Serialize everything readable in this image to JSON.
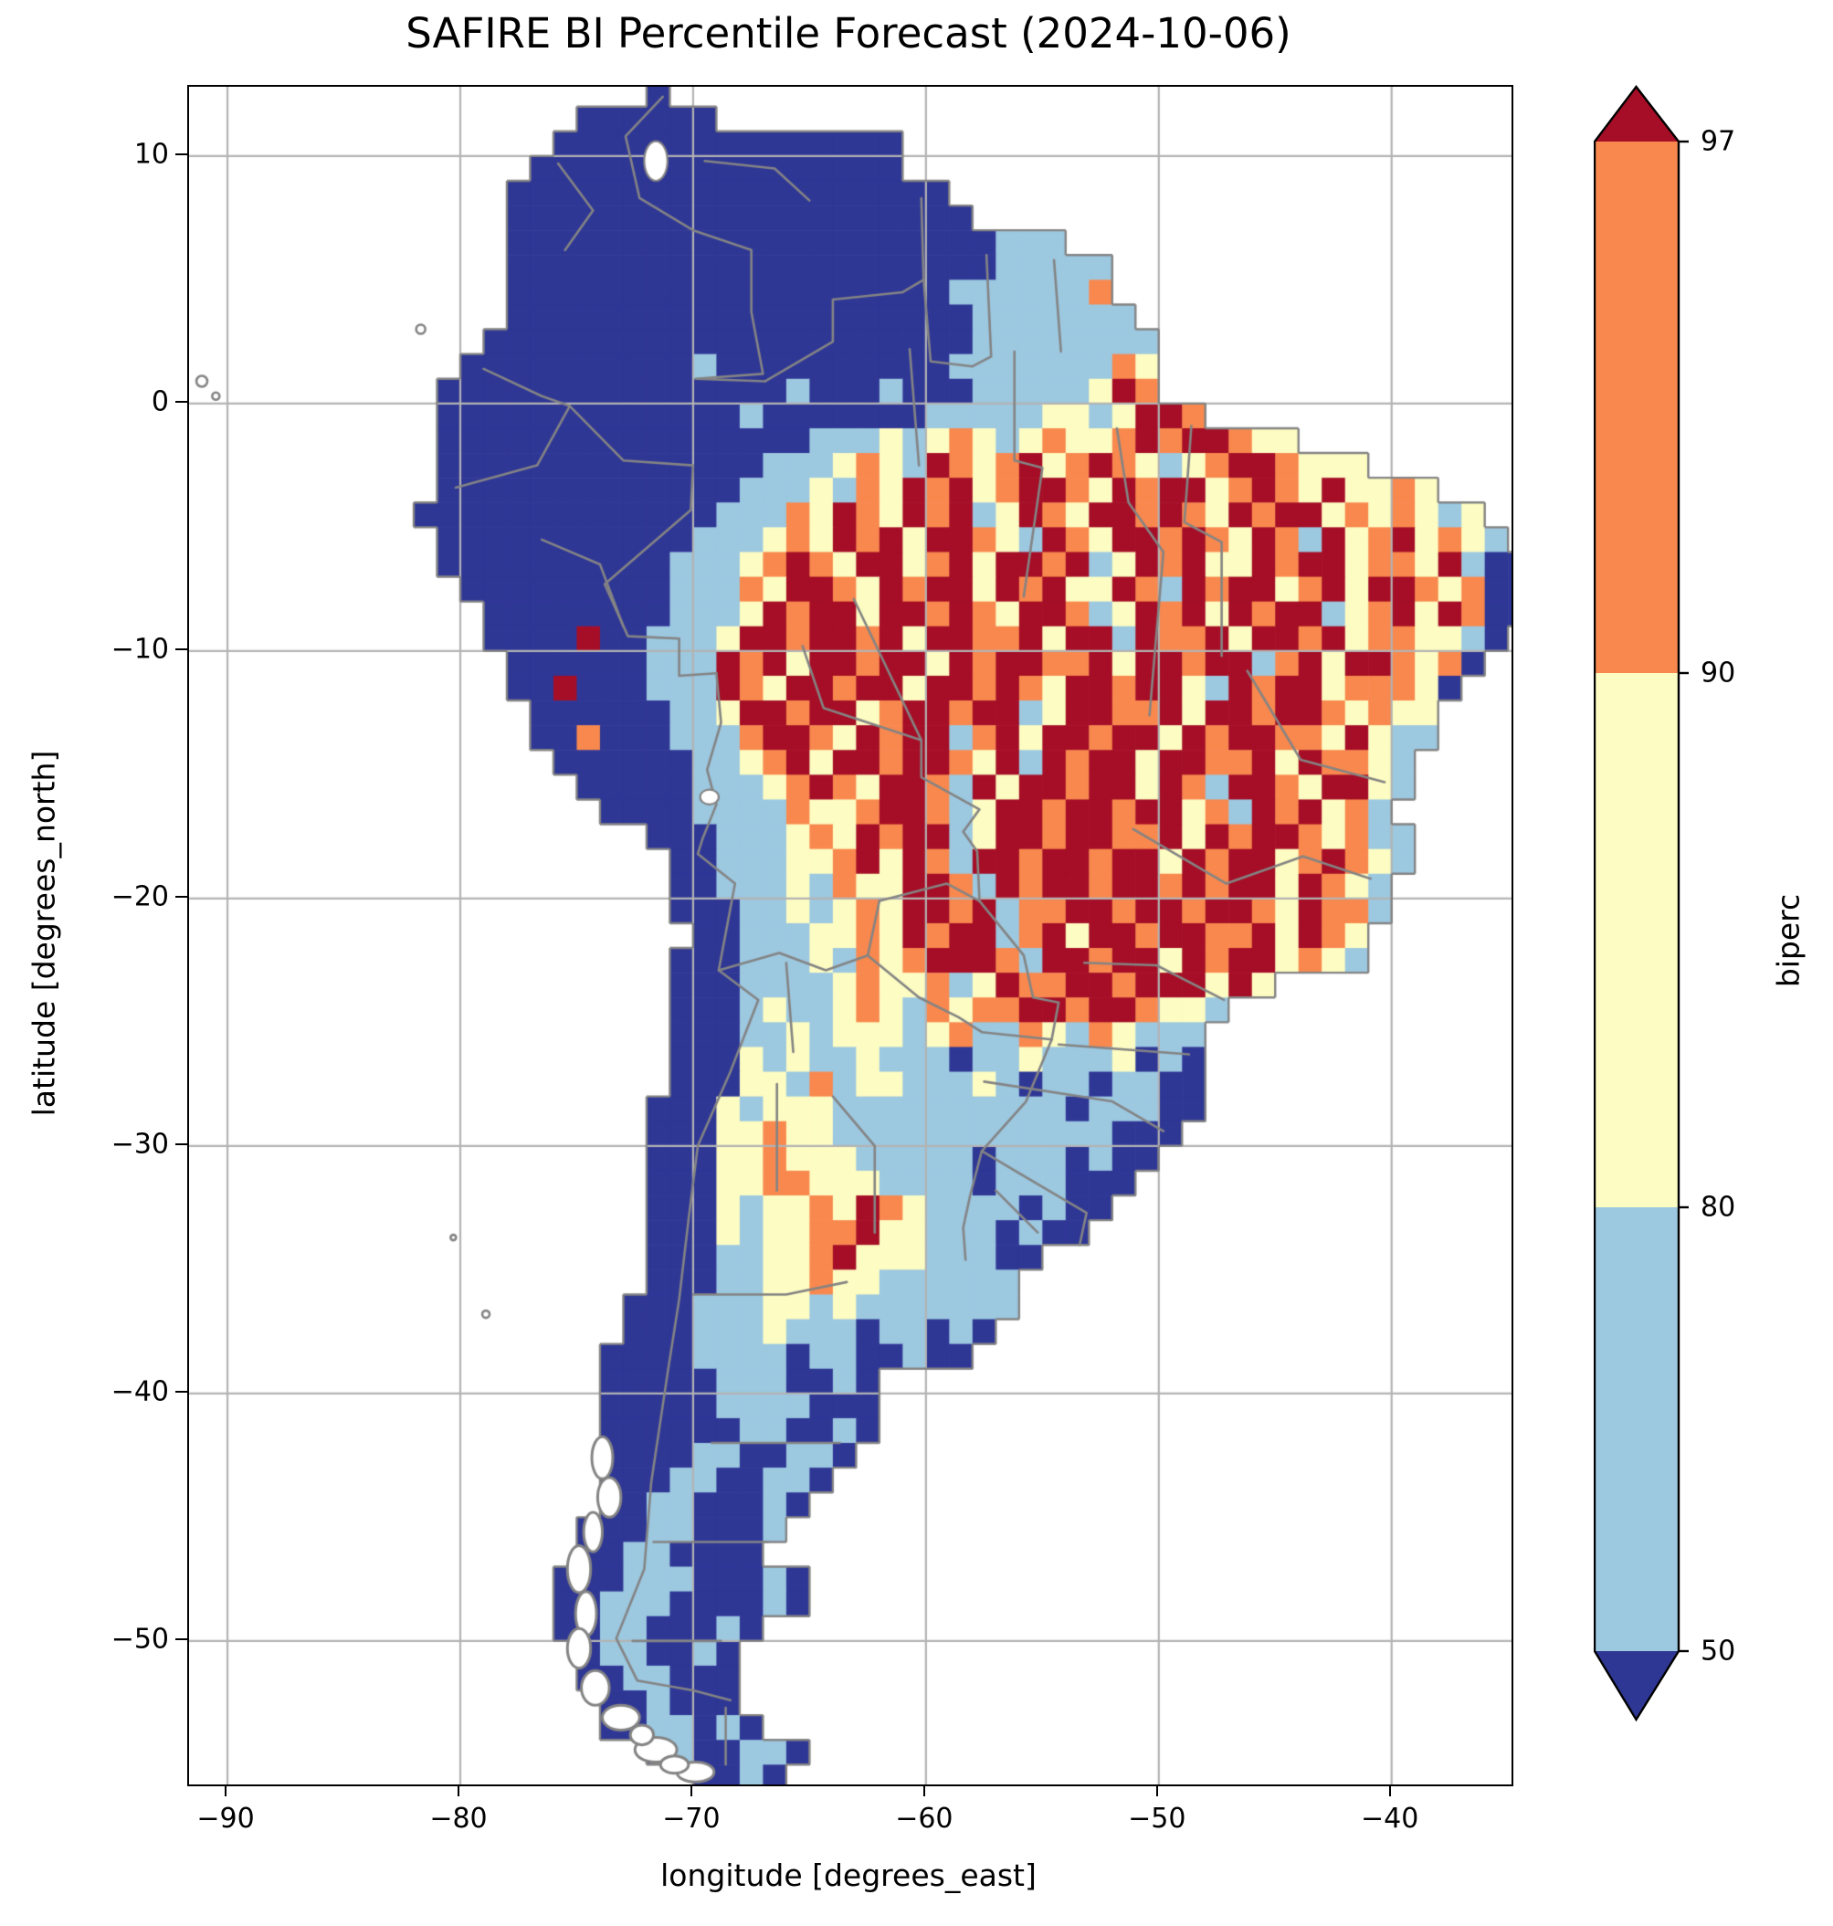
{
  "title": "SAFIRE BI Percentile Forecast (2024-10-06)",
  "axes": {
    "xlabel": "longitude [degrees_east]",
    "ylabel": "latitude [degrees_north]",
    "xlim": [
      -91.65,
      -34.85
    ],
    "ylim": [
      -55.8,
      12.8
    ],
    "x_ticks": [
      {
        "value": -90,
        "label": "−90"
      },
      {
        "value": -80,
        "label": "−80"
      },
      {
        "value": -70,
        "label": "−70"
      },
      {
        "value": -60,
        "label": "−60"
      },
      {
        "value": -50,
        "label": "−50"
      },
      {
        "value": -40,
        "label": "−40"
      }
    ],
    "y_ticks": [
      {
        "value": 10,
        "label": "10"
      },
      {
        "value": 0,
        "label": "0"
      },
      {
        "value": -10,
        "label": "−10"
      },
      {
        "value": -20,
        "label": "−20"
      },
      {
        "value": -30,
        "label": "−30"
      },
      {
        "value": -40,
        "label": "−40"
      },
      {
        "value": -50,
        "label": "−50"
      }
    ]
  },
  "colorbar": {
    "label": "biperc",
    "levels": [
      50,
      80,
      90,
      97
    ],
    "tick_labels": [
      "97",
      "90",
      "80",
      "50"
    ],
    "extend": "both"
  },
  "colors": {
    "under_50": "#2f3795",
    "bin_50_80": "#9cc8e0",
    "bin_80_90": "#fdfcc2",
    "bin_90_97": "#f8884e",
    "over_97": "#a50e26",
    "border_gray": "#848484",
    "grid_gray": "#b3b3b3",
    "spine_black": "#000000",
    "background": "#ffffff"
  },
  "chart_data": {
    "type": "heatmap",
    "title": "SAFIRE BI Percentile Forecast (2024-10-06)",
    "xlabel": "longitude [degrees_east]",
    "ylabel": "latitude [degrees_north]",
    "variable": "biperc",
    "levels": [
      50,
      80,
      90,
      97
    ],
    "bins": [
      "<50",
      "50-80",
      "80-90",
      "90-97",
      ">97"
    ],
    "bin_colors": [
      "#2f3795",
      "#9cc8e0",
      "#fdfcc2",
      "#f8884e",
      "#a50e26"
    ],
    "legend_position": "right",
    "grid_on": true,
    "code_meaning": {
      ".": "no data / ocean",
      "N": "<50",
      "b": "50-80",
      "y": "80-90",
      "o": "90-97",
      "r": ">97"
    },
    "grid": {
      "lon_min": -92,
      "lat_max": 13,
      "cell_deg": 1,
      "cols": 58,
      "rows": 69
    },
    "raster_rows": [
      "....................N.....................................",
      ".................NNNNNN...................................",
      "................NNNNNNNNNNNNNNN...........................",
      "...............NNNNNNNNNNNNNNNN...........................",
      "..............NNNNNNNNNNNNNNNNNNN.........................",
      "..............NNNNNNNNNNNNNNNNNNNN........................",
      "..............NNNNNNNNNNNNNNNNNNNNNbbb....................",
      "..............NNNNNNNNNNNNNNNNNNNNNbbbbb..................",
      "..............NNNNNNNNNNNNNNNNNNNbbbbbbo..................",
      "..............NNNNNNNNNNNNNNNNNNNNbbbbbbb.................",
      ".............NNNNNNNNNNNNNNNNNNNNNbbbbbbbb................",
      "............NNNNNNNNNNbNNNNNNNNNNbbbbbbboy................",
      "...........NNNNNNNNNNNNNNNbNNNbNNNbbbbbyro................",
      "...........NNNNNNNNNNNNNbNNNNNNNbbbbbyybyrro..............",
      "...........NNNNNNNNNNNNNNNNbbbybyoybyoyyororroyy..........",
      "...........NNNNNNNNNNNNNNbbbyoybroyoryoroybyorroyyy.......",
      "...........NNNNNNNNNNNNNbbbyboyroryorroyrorryoroyryyoy....",
      "..........NNNNNNNNNNNNNbbboyroyrorbyroyrroroyrorryoyoyby..",
      "...........NNNNNNNNNNNbbbyoyroryrroybroyrroroyrobryoryoyb.",
      "...........NNNNNNNNNNbbbyoroyrryoryrrorbyroryyrorryooyrbNN",
      "............NNNNNNNNNbbboyrroyrorryroryyrobrorryoryrroyoNN",
      ".............NNNNNNNNbbbyrorryrroroyrrobyroryrorrbyoryroNN",
      ".............NNNNrNNbbbyrrorroryrrooryrrbrooryrroryooyybN.",
      "..............NNNNNNbbbroryrrorryrorrooryrrorrboryrroyoN..",
      "..............NNrNNNbbbroyrrorryrroroyrrorrybrorryoooyN...",
      "...............NNNNNNbbyrrorryorrorrbyrrooryrrorroyoyy....",
      "...............NNoNNNbbborroyrorrboryrrorryrorrooyrybb....",
      "................NNNNNNbbyoryrrorroyrbrorryrrooryrooyb.....",
      ".................NNNNNbbbyoroyrrobryrrorryrobrroyrryb.....",
      "..................NNNNbbbboyyorrobyrrorrorryobroryob......",
      "....................NNNbbbyoyrorrbyrrorrooryrorroyobb.....",
      ".....................NNbbbyyoryrobrrorrorryrorryoroyb.....",
      ".....................NNbbbyboyyrrobrorrorrororryroyb......",
      ".....................NNNbbybyoyrrorboorrorrorroyroob......",
      "......................NNbbbyyoyrorrboryrrorrooryroy.......",
      ".....................NNNbbbyboyorrrobrrorryrorryoyb.......",
      ".....................NNNbbbbyoyyobyroorrorrryry...........",
      ".....................NNNbybbyoyboyoorrorroyyb.............",
      ".....................NNNbbybyyybyobboyboybbb..............",
      ".....................NNNybybbybbbNbbybbbyNbN..............",
      ".....................NNNyybobyybbbybNbbNbbNN..............",
      "....................NNNybyyybbbbbbbbbbNbbbNN..............",
      "....................NNNyyoyybbbbbbbbbbbbNNN...............",
      "....................NNNyyoyyybbbbbNbbbNbNN................",
      "....................NNNyyooyyybbbbNbbbNNN.................",
      "....................NNNybyyoyroybbbbNbNN..................",
      "....................NNNybyyooryybbbNbNN...................",
      "....................NNNbbyyoryyybbbNN.....................",
      "....................NNNbbyyoyybbbbbb......................",
      "...................NNNbbbyybybbbbbbb......................",
      "...................NNNbbbybbbNbbNbN.......................",
      "..................NNNNbbbbNbbNNbNN........................",
      "..................NNNNNbbbNNbN............................",
      "..................NNNNNbbbbNNN............................",
      "..................NNNNNNbbNNbN............................",
      "..................NNNNbbNNbbN.............................",
      "..................NNNbbNNbbN..............................",
      "..................NNbbNNNbN...............................",
      ".................NNNbbNNNb................................",
      ".................NNbbNNNN.................................",
      "................NNNbbbNNNbN...............................",
      "................NNbbbNNNNbN...............................",
      "................NNbbNNNbN.................................",
      ".................NbbNNbN..................................",
      ".................NNbbNNN..................................",
      "..................NNbNNN..................................",
      "..................NNbbNbN.................................",
      "....................NbNNbbN...............................",
      "......................NNbN................................"
    ],
    "borders": [
      [
        [
          -71.3,
          12.4
        ],
        [
          -72.9,
          10.8
        ],
        [
          -72.3,
          8.3
        ],
        [
          -70,
          7
        ],
        [
          -67.5,
          6.2
        ],
        [
          -67.5,
          3.7
        ],
        [
          -67,
          1.2
        ],
        [
          -69.9,
          1
        ],
        [
          -66.9,
          0.9
        ]
      ],
      [
        [
          -66.9,
          0.9
        ],
        [
          -64,
          2.5
        ],
        [
          -64,
          4.2
        ],
        [
          -61,
          4.5
        ],
        [
          -60.1,
          5
        ],
        [
          -60.2,
          8.3
        ]
      ],
      [
        [
          -60.1,
          5
        ],
        [
          -59.8,
          1.7
        ],
        [
          -58,
          1.5
        ],
        [
          -57.2,
          1.9
        ],
        [
          -57.4,
          6
        ]
      ],
      [
        [
          -54.5,
          5.8
        ],
        [
          -54.2,
          2.1
        ]
      ],
      [
        [
          -79,
          1.4
        ],
        [
          -76.5,
          0.3
        ],
        [
          -75.3,
          -0.1
        ],
        [
          -76.7,
          -2.5
        ],
        [
          -80.2,
          -3.4
        ]
      ],
      [
        [
          -75.3,
          -0.1
        ],
        [
          -73,
          -2.3
        ],
        [
          -70,
          -2.5
        ],
        [
          -70.1,
          -4.3
        ],
        [
          -73.8,
          -7.3
        ],
        [
          -72.8,
          -9.4
        ],
        [
          -70.6,
          -9.5
        ],
        [
          -70.6,
          -11
        ],
        [
          -69,
          -10.9
        ]
      ],
      [
        [
          -69,
          -10.9
        ],
        [
          -68.8,
          -12.9
        ],
        [
          -69.4,
          -14.8
        ],
        [
          -69,
          -16.2
        ],
        [
          -69.6,
          -17.6
        ],
        [
          -69.8,
          -18.2
        ],
        [
          -68.2,
          -19.4
        ],
        [
          -68.9,
          -22.9
        ]
      ],
      [
        [
          -65.3,
          -9.8
        ],
        [
          -64.4,
          -12.3
        ],
        [
          -60.2,
          -13.6
        ],
        [
          -60.2,
          -15.1
        ],
        [
          -57.7,
          -16.4
        ],
        [
          -58.4,
          -17.3
        ],
        [
          -57.8,
          -18.1
        ],
        [
          -57.7,
          -20.1
        ]
      ],
      [
        [
          -62,
          -20.1
        ],
        [
          -59.1,
          -19.4
        ],
        [
          -57.7,
          -20.1
        ],
        [
          -55.8,
          -22.3
        ],
        [
          -55.4,
          -24
        ],
        [
          -54.3,
          -24.2
        ],
        [
          -54.6,
          -25.7
        ]
      ],
      [
        [
          -68.9,
          -22.9
        ],
        [
          -66.3,
          -22.2
        ],
        [
          -64.3,
          -22.9
        ],
        [
          -62.5,
          -22.3
        ],
        [
          -62,
          -20.1
        ]
      ],
      [
        [
          -62.5,
          -22.3
        ],
        [
          -60.3,
          -24
        ],
        [
          -58.6,
          -24.8
        ],
        [
          -57.6,
          -25.4
        ],
        [
          -54.6,
          -25.7
        ]
      ],
      [
        [
          -68.9,
          -22.9
        ],
        [
          -67.2,
          -24.1
        ],
        [
          -68.4,
          -27
        ],
        [
          -69.8,
          -30
        ],
        [
          -70.2,
          -33
        ],
        [
          -70.6,
          -36.2
        ],
        [
          -71.1,
          -39.2
        ],
        [
          -71.8,
          -43.6
        ],
        [
          -72.1,
          -47.1
        ],
        [
          -73.3,
          -49.9
        ],
        [
          -72.4,
          -51.6
        ],
        [
          -70,
          -52
        ],
        [
          -68.4,
          -52.4
        ]
      ],
      [
        [
          -68.6,
          -52.7
        ],
        [
          -68.6,
          -55
        ]
      ],
      [
        [
          -54.6,
          -25.7
        ],
        [
          -55.7,
          -28.2
        ],
        [
          -57.6,
          -30.2
        ],
        [
          -58.1,
          -32
        ],
        [
          -58.4,
          -33.3
        ],
        [
          -58.3,
          -34.6
        ]
      ],
      [
        [
          -57.6,
          -30.2
        ],
        [
          -56,
          -31.1
        ],
        [
          -53.1,
          -32.7
        ],
        [
          -53.4,
          -34
        ]
      ],
      [
        [
          -56.2,
          2.1
        ],
        [
          -56.2,
          -2.3
        ],
        [
          -55,
          -2.6
        ],
        [
          -55.8,
          -7.8
        ]
      ],
      [
        [
          -51.8,
          -1
        ],
        [
          -51.3,
          -4
        ],
        [
          -49.8,
          -6
        ],
        [
          -50.4,
          -12.6
        ]
      ],
      [
        [
          -48.6,
          -0.9
        ],
        [
          -48.9,
          -4.8
        ],
        [
          -47.3,
          -5.6
        ],
        [
          -47.3,
          -10.2
        ]
      ],
      [
        [
          -46.2,
          -10.8
        ],
        [
          -43.9,
          -14.4
        ],
        [
          -40.3,
          -15.3
        ]
      ],
      [
        [
          -51.1,
          -17.2
        ],
        [
          -47.1,
          -19.4
        ],
        [
          -43.8,
          -18.3
        ],
        [
          -40.9,
          -19.2
        ]
      ],
      [
        [
          -53.2,
          -22.6
        ],
        [
          -50.1,
          -22.7
        ],
        [
          -47.2,
          -24.1
        ]
      ],
      [
        [
          -54.3,
          -25.9
        ],
        [
          -48.7,
          -26.3
        ]
      ],
      [
        [
          -57.5,
          -27.4
        ],
        [
          -52,
          -28.2
        ],
        [
          -49.8,
          -29.4
        ]
      ],
      [
        [
          -60.3,
          -2.5
        ],
        [
          -60.7,
          2.2
        ]
      ],
      [
        [
          -63.1,
          -7.9
        ],
        [
          -60.2,
          -13.6
        ]
      ],
      [
        [
          -66,
          -22.6
        ],
        [
          -65.7,
          -26.2
        ]
      ],
      [
        [
          -66.4,
          -27.5
        ],
        [
          -66.4,
          -31.8
        ]
      ],
      [
        [
          -70,
          -36
        ],
        [
          -66,
          -36
        ],
        [
          -63.4,
          -35.5
        ]
      ],
      [
        [
          -69.2,
          -42
        ],
        [
          -63.7,
          -42
        ]
      ],
      [
        [
          -71.7,
          -46
        ],
        [
          -66.8,
          -46
        ]
      ],
      [
        [
          -72.6,
          -50
        ],
        [
          -68.8,
          -50
        ]
      ],
      [
        [
          -69.5,
          9.8
        ],
        [
          -66.5,
          9.5
        ],
        [
          -65,
          8.2
        ]
      ],
      [
        [
          -75.8,
          9.7
        ],
        [
          -74.3,
          7.8
        ],
        [
          -75.5,
          6.2
        ]
      ],
      [
        [
          -76.5,
          -5.5
        ],
        [
          -74,
          -6.5
        ],
        [
          -73,
          -9
        ]
      ],
      [
        [
          -64,
          -28
        ],
        [
          -62.2,
          -30
        ],
        [
          -62.2,
          -33.5
        ]
      ],
      [
        [
          -57,
          -31.8
        ],
        [
          -55.2,
          -33.5
        ]
      ]
    ],
    "fjords": [
      [
        -73.9,
        -42.6,
        0.45,
        0.85
      ],
      [
        -73.6,
        -44.2,
        0.5,
        0.8
      ],
      [
        -74.3,
        -45.6,
        0.4,
        0.8
      ],
      [
        -74.9,
        -47.1,
        0.5,
        0.95
      ],
      [
        -74.6,
        -48.9,
        0.45,
        0.9
      ],
      [
        -74.9,
        -50.3,
        0.5,
        0.8
      ],
      [
        -74.2,
        -51.9,
        0.6,
        0.7
      ],
      [
        -73.1,
        -53.1,
        0.8,
        0.5
      ],
      [
        -71.6,
        -54.4,
        0.9,
        0.5
      ],
      [
        -69.9,
        -55.3,
        0.8,
        0.4
      ],
      [
        -72.2,
        -53.8,
        0.5,
        0.4
      ],
      [
        -70.8,
        -55,
        0.6,
        0.35
      ]
    ],
    "islands": [
      [
        -81.7,
        3,
        5
      ],
      [
        -91.1,
        0.9,
        6
      ],
      [
        -90.5,
        0.3,
        4
      ],
      [
        -78.9,
        -36.8,
        4
      ],
      [
        -80.3,
        -33.7,
        3
      ]
    ],
    "lakes": [
      [
        -71.6,
        9.8,
        0.5,
        0.8
      ],
      [
        -69.3,
        -15.9,
        0.4,
        0.3
      ]
    ]
  }
}
